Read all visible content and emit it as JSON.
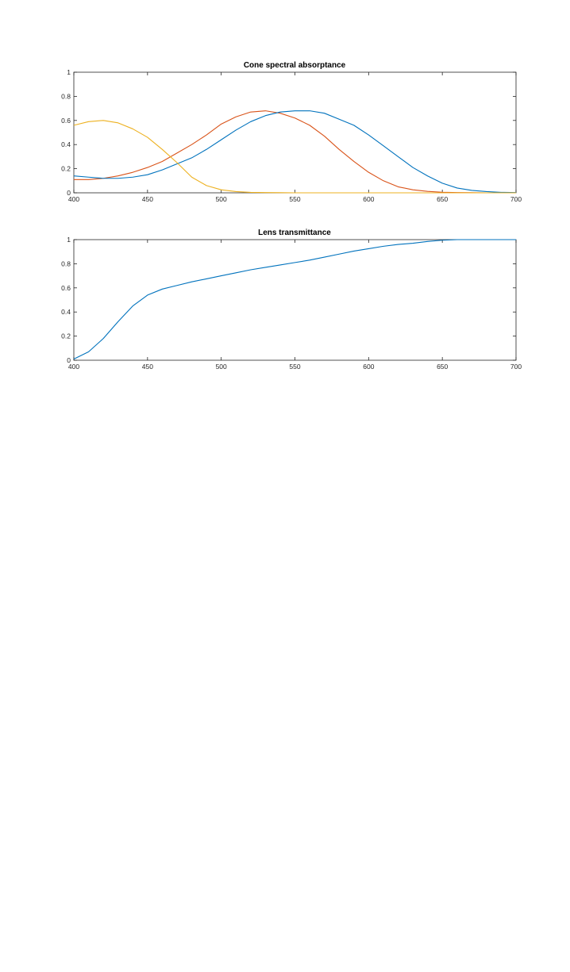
{
  "chart_data": [
    {
      "type": "line",
      "title": "Cone spectral absorptance",
      "xlabel": "",
      "ylabel": "",
      "xlim": [
        400,
        700
      ],
      "ylim": [
        0,
        1
      ],
      "x_ticks": [
        400,
        450,
        500,
        550,
        600,
        650,
        700
      ],
      "x_tick_labels": [
        "400",
        "450",
        "500",
        "550",
        "600",
        "650",
        "700"
      ],
      "y_ticks": [
        0,
        0.2,
        0.4,
        0.6,
        0.8,
        1
      ],
      "y_tick_labels": [
        "0",
        "0.2",
        "0.4",
        "0.6",
        "0.8",
        "1"
      ],
      "grid": false,
      "legend": "none",
      "x": [
        400,
        410,
        420,
        430,
        440,
        450,
        460,
        470,
        480,
        490,
        500,
        510,
        520,
        530,
        540,
        550,
        560,
        570,
        580,
        590,
        600,
        610,
        620,
        630,
        640,
        650,
        660,
        670,
        680,
        690,
        700
      ],
      "series": [
        {
          "color": "#D95319",
          "values": [
            0.11,
            0.11,
            0.12,
            0.14,
            0.17,
            0.21,
            0.26,
            0.33,
            0.4,
            0.48,
            0.57,
            0.63,
            0.67,
            0.68,
            0.66,
            0.62,
            0.56,
            0.47,
            0.36,
            0.26,
            0.17,
            0.1,
            0.05,
            0.025,
            0.012,
            0.005,
            0.002,
            0.001,
            0,
            0,
            0
          ]
        },
        {
          "color": "#0072BD",
          "values": [
            0.14,
            0.13,
            0.12,
            0.12,
            0.13,
            0.15,
            0.19,
            0.24,
            0.29,
            0.36,
            0.44,
            0.52,
            0.59,
            0.64,
            0.67,
            0.68,
            0.68,
            0.66,
            0.61,
            0.56,
            0.48,
            0.39,
            0.3,
            0.21,
            0.14,
            0.08,
            0.04,
            0.02,
            0.01,
            0.004,
            0.002
          ]
        },
        {
          "color": "#EDB120",
          "values": [
            0.56,
            0.59,
            0.6,
            0.58,
            0.53,
            0.46,
            0.36,
            0.25,
            0.13,
            0.06,
            0.025,
            0.01,
            0.004,
            0.002,
            0.001,
            0,
            0,
            0,
            0,
            0,
            0,
            0,
            0,
            0,
            0,
            0,
            0,
            0,
            0,
            0,
            0
          ]
        }
      ]
    },
    {
      "type": "line",
      "title": "Lens transmittance",
      "xlabel": "",
      "ylabel": "",
      "xlim": [
        400,
        700
      ],
      "ylim": [
        0,
        1
      ],
      "x_ticks": [
        400,
        450,
        500,
        550,
        600,
        650,
        700
      ],
      "x_tick_labels": [
        "400",
        "450",
        "500",
        "550",
        "600",
        "650",
        "700"
      ],
      "y_ticks": [
        0,
        0.2,
        0.4,
        0.6,
        0.8,
        1
      ],
      "y_tick_labels": [
        "0",
        "0.2",
        "0.4",
        "0.6",
        "0.8",
        "1"
      ],
      "grid": false,
      "legend": "none",
      "x": [
        400,
        410,
        420,
        430,
        440,
        450,
        460,
        470,
        480,
        490,
        500,
        510,
        520,
        530,
        540,
        550,
        560,
        570,
        580,
        590,
        600,
        610,
        620,
        630,
        640,
        650,
        660,
        670,
        680,
        690,
        700
      ],
      "series": [
        {
          "color": "#0072BD",
          "values": [
            0.01,
            0.07,
            0.18,
            0.32,
            0.45,
            0.54,
            0.59,
            0.62,
            0.65,
            0.675,
            0.7,
            0.725,
            0.75,
            0.77,
            0.79,
            0.81,
            0.83,
            0.855,
            0.88,
            0.905,
            0.925,
            0.945,
            0.96,
            0.97,
            0.985,
            0.995,
            1.0,
            1.0,
            1.0,
            1.0,
            1.0
          ]
        }
      ]
    }
  ]
}
